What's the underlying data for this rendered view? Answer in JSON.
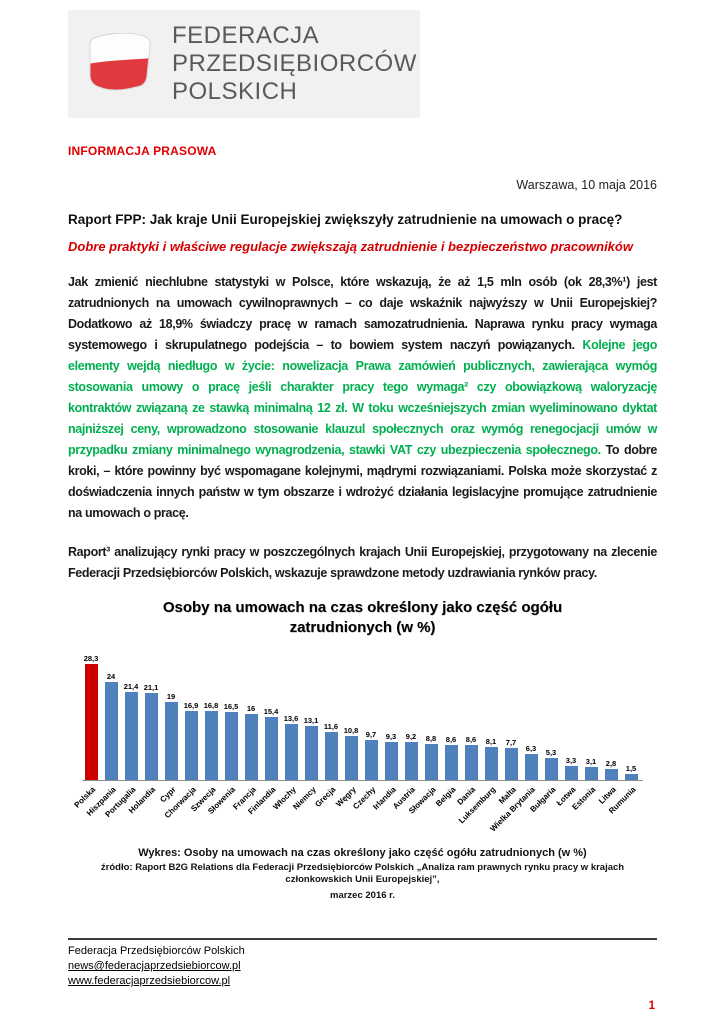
{
  "logo": {
    "line1": "FEDERACJA",
    "line2": "PRZEDSIĘBIORCÓW",
    "line3": "POLSKICH"
  },
  "header": {
    "press_label": "INFORMACJA PRASOWA",
    "dateline": "Warszawa, 10 maja 2016",
    "title": "Raport FPP: Jak kraje Unii Europejskiej zwiększyły zatrudnienie na umowach o pracę?",
    "subtitle": "Dobre praktyki i właściwe regulacje zwiększają zatrudnienie i bezpieczeństwo pracowników"
  },
  "paragraphs": {
    "intro_runs": [
      {
        "text": "Jak zmienić niechlubne statystyki w Polsce, które wskazują, że aż 1,5 mln osób (ok 28,3%¹) jest zatrudnionych na umowach cywilnoprawnych – co daje wskaźnik najwyższy w Unii Europejskiej? Dodatkowo aż 18,9% świadczy pracę w ramach samozatrudnienia. Naprawa rynku pracy wymaga systemowego i skrupulatnego podejścia – to bowiem system naczyń powiązanych. ",
        "color": "#1a1a1a"
      },
      {
        "text": "Kolejne jego elementy wejdą niedługo w życie: nowelizacja Prawa zamówień publicznych, zawierająca wymóg stosowania umowy o pracę jeśli charakter pracy tego wymaga² czy obowiązkową waloryzację kontraktów związaną ze stawką minimalną 12 zł. W toku wcześniejszych zmian wyeliminowano dyktat najniższej ceny, wprowadzono stosowanie klauzul społecznych oraz wymóg renegocjacji umów w przypadku zmiany minimalnego wynagrodzenia, stawki VAT czy ubezpieczenia społecznego. ",
        "color": "#00B050"
      },
      {
        "text": "To dobre kroki, – które powinny być wspomagane kolejnymi, mądrymi rozwiązaniami. Polska może skorzystać z doświadczenia innych państw w tym obszarze i wdrożyć działania legislacyjne promujące zatrudnienie na umowach o pracę.",
        "color": "#1a1a1a"
      }
    ],
    "second": "Raport³ analizujący rynki pracy w poszczególnych krajach Unii Europejskiej, przygotowany na zlecenie Federacji Przedsiębiorców Polskich, wskazuje sprawdzone metody uzdrawiania rynków pracy."
  },
  "chart_data": {
    "type": "bar",
    "title": "Osoby na umowach na czas określony jako część ogółu zatrudnionych (w %)",
    "categories": [
      "Polska",
      "Hiszpania",
      "Portugalia",
      "Holandia",
      "Cypr",
      "Chorwacja",
      "Szwecja",
      "Słowenia",
      "Francja",
      "Finlandia",
      "Włochy",
      "Niemcy",
      "Grecja",
      "Węgry",
      "Czechy",
      "Irlandia",
      "Austria",
      "Słowacja",
      "Belgia",
      "Dania",
      "Luksemburg",
      "Malta",
      "Wielka Brytania",
      "Bułgaria",
      "Łotwa",
      "Estonia",
      "Litwa",
      "Rumunia"
    ],
    "values": [
      28.3,
      24,
      21.4,
      21.1,
      19,
      16.9,
      16.8,
      16.5,
      16,
      15.4,
      13.6,
      13.1,
      11.6,
      10.8,
      9.7,
      9.3,
      9.2,
      8.8,
      8.6,
      8.6,
      8.1,
      7.7,
      6.3,
      5.3,
      3.3,
      3.1,
      2.8,
      1.5
    ],
    "value_labels": [
      "28,3",
      "24",
      "21,4",
      "21,1",
      "19",
      "16,9",
      "16,8",
      "16,5",
      "16",
      "15,4",
      "13,6",
      "13,1",
      "11,6",
      "10,8",
      "9,7",
      "9,3",
      "9,2",
      "8,8",
      "8,6",
      "8,6",
      "8,1",
      "7,7",
      "6,3",
      "5,3",
      "3,3",
      "3,1",
      "2,8",
      "1,5"
    ],
    "bar_color": "#4F81BD",
    "highlight_color": "#CC0000",
    "highlight_index": 0,
    "xlabel": "",
    "ylabel": "",
    "ylim": [
      0,
      30
    ],
    "grid": false,
    "legend": false
  },
  "chart_caption": "Wykres: Osoby na umowach na czas określony jako część ogółu zatrudnionych (w %)",
  "chart_source": [
    "źródło: Raport B2G Relations dla Federacji Przedsiębiorców Polskich „Analiza ram prawnych rynku pracy w krajach członkowskich Unii Europejskiej”,",
    "marzec 2016 r."
  ],
  "footer": {
    "organization": "Federacja Przedsiębiorców Polskich",
    "email": "news@federacjaprzedsiebiorcow.pl",
    "website": "www.federacjaprzedsiebiorcow.pl",
    "page_number": "1"
  }
}
